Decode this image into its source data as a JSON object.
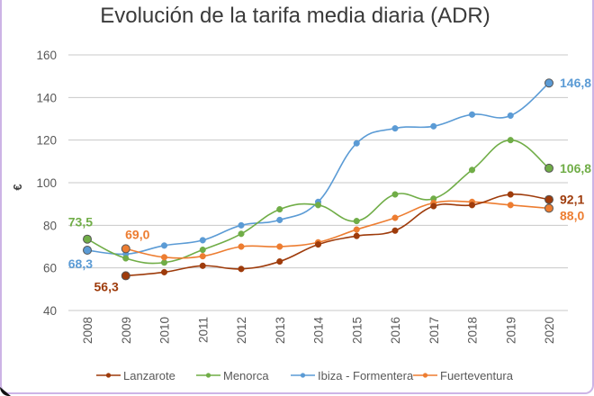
{
  "chart_data": {
    "type": "line",
    "title": "Evolución de la tarifa media diaria (ADR)",
    "xlabel": "",
    "ylabel": "€",
    "ylim": [
      40,
      160
    ],
    "yticks": [
      "40",
      "60",
      "80",
      "100",
      "120",
      "140",
      "160"
    ],
    "ytick_values": [
      40,
      60,
      80,
      100,
      120,
      140,
      160
    ],
    "grid": true,
    "legend_position": "bottom",
    "x": [
      "2008",
      "2009",
      "2010",
      "2011",
      "2012",
      "2013",
      "2014",
      "2015",
      "2016",
      "2017",
      "2018",
      "2019",
      "2020"
    ],
    "series": [
      {
        "name": "Lanzarote",
        "color": "#9e3b0b",
        "values": [
          null,
          56.3,
          58.0,
          61.0,
          59.5,
          63.0,
          71.0,
          75.0,
          77.5,
          89.0,
          89.5,
          94.5,
          92.1
        ],
        "labels": [
          {
            "index": 1,
            "text": "56,3",
            "position": "left-below"
          },
          {
            "index": 12,
            "text": "92,1",
            "position": "right"
          }
        ]
      },
      {
        "name": "Menorca",
        "color": "#70ad47",
        "values": [
          73.5,
          64.5,
          62.5,
          68.5,
          76.0,
          87.5,
          89.5,
          82.0,
          94.5,
          92.5,
          106.0,
          120.0,
          106.8
        ],
        "labels": [
          {
            "index": 0,
            "text": "73,5",
            "position": "above-left"
          },
          {
            "index": 12,
            "text": "106,8",
            "position": "right"
          }
        ]
      },
      {
        "name": "Ibiza - Formentera",
        "color": "#5b9bd5",
        "values": [
          68.3,
          66.5,
          70.5,
          73.0,
          80.0,
          82.5,
          91.0,
          118.5,
          125.5,
          126.5,
          132.0,
          131.5,
          146.8
        ],
        "labels": [
          {
            "index": 0,
            "text": "68,3",
            "position": "below-left"
          },
          {
            "index": 12,
            "text": "146,8",
            "position": "right"
          }
        ]
      },
      {
        "name": "Fuerteventura",
        "color": "#ed7d31",
        "values": [
          null,
          69.0,
          65.0,
          65.5,
          70.0,
          70.0,
          72.0,
          78.0,
          83.5,
          90.5,
          91.0,
          89.5,
          88.0
        ],
        "labels": [
          {
            "index": 1,
            "text": "69,0",
            "position": "above"
          },
          {
            "index": 12,
            "text": "88,0",
            "position": "right-below"
          }
        ]
      }
    ]
  }
}
